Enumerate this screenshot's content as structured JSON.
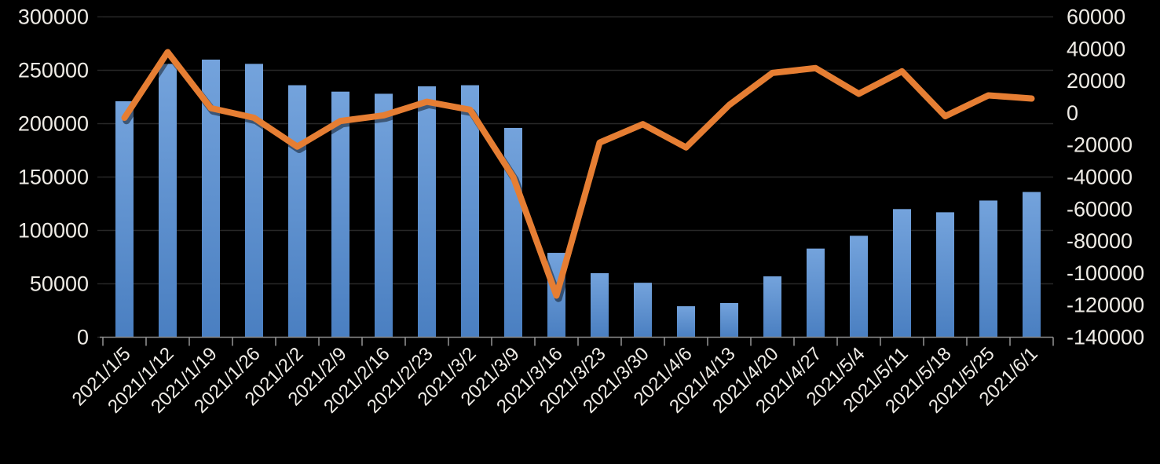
{
  "page": {
    "background": "#000000"
  },
  "chart_data": {
    "type": "combo",
    "grid": true,
    "legend_position": "none",
    "categories": [
      "2021/1/5",
      "2021/1/12",
      "2021/1/19",
      "2021/1/26",
      "2021/2/2",
      "2021/2/9",
      "2021/2/16",
      "2021/2/23",
      "2021/3/2",
      "2021/3/9",
      "2021/3/16",
      "2021/3/23",
      "2021/3/30",
      "2021/4/6",
      "2021/4/13",
      "2021/4/20",
      "2021/4/27",
      "2021/5/4",
      "2021/5/11",
      "2021/5/18",
      "2021/5/25",
      "2021/6/1"
    ],
    "series": [
      {
        "name": "bars",
        "type": "bar",
        "axis": "left",
        "color_top": "#74A3DC",
        "color_bottom": "#4A7FC1",
        "values": [
          221000,
          256000,
          260000,
          256000,
          236000,
          230000,
          228000,
          235000,
          236000,
          196000,
          79000,
          60000,
          51000,
          29000,
          32000,
          57000,
          83000,
          95000,
          120000,
          117000,
          128000,
          136000
        ]
      },
      {
        "name": "line",
        "type": "line",
        "axis": "right",
        "color": "#E67E33",
        "stroke_width": 8,
        "values": [
          -3000,
          38000,
          3000,
          -3000,
          -21000,
          -5000,
          -1500,
          7000,
          2000,
          -40000,
          -114000,
          -18500,
          -7000,
          -21500,
          5000,
          25000,
          28000,
          12000,
          26000,
          -2000,
          11000,
          9000
        ]
      }
    ],
    "left_axis": {
      "min": 0,
      "max": 300000,
      "step": 50000,
      "tick_values": [
        300000,
        250000,
        200000,
        150000,
        100000,
        50000,
        0
      ],
      "tick_labels": [
        "300000",
        "250000",
        "200000",
        "150000",
        "100000",
        "50000",
        "0"
      ]
    },
    "right_axis": {
      "min": -140000,
      "max": 60000,
      "step": 20000,
      "tick_values": [
        60000,
        40000,
        20000,
        0,
        -20000,
        -40000,
        -60000,
        -80000,
        -100000,
        -120000,
        -140000
      ],
      "tick_labels": [
        "60000",
        "40000",
        "20000",
        "0",
        "-20000",
        "-40000",
        "-60000",
        "-80000",
        "-100000",
        "-120000",
        "-140000"
      ]
    },
    "colors": {
      "background": "#000000",
      "gridline": "#282828",
      "axis_line": "#8C8C8C",
      "label": "#EFECE6"
    }
  }
}
